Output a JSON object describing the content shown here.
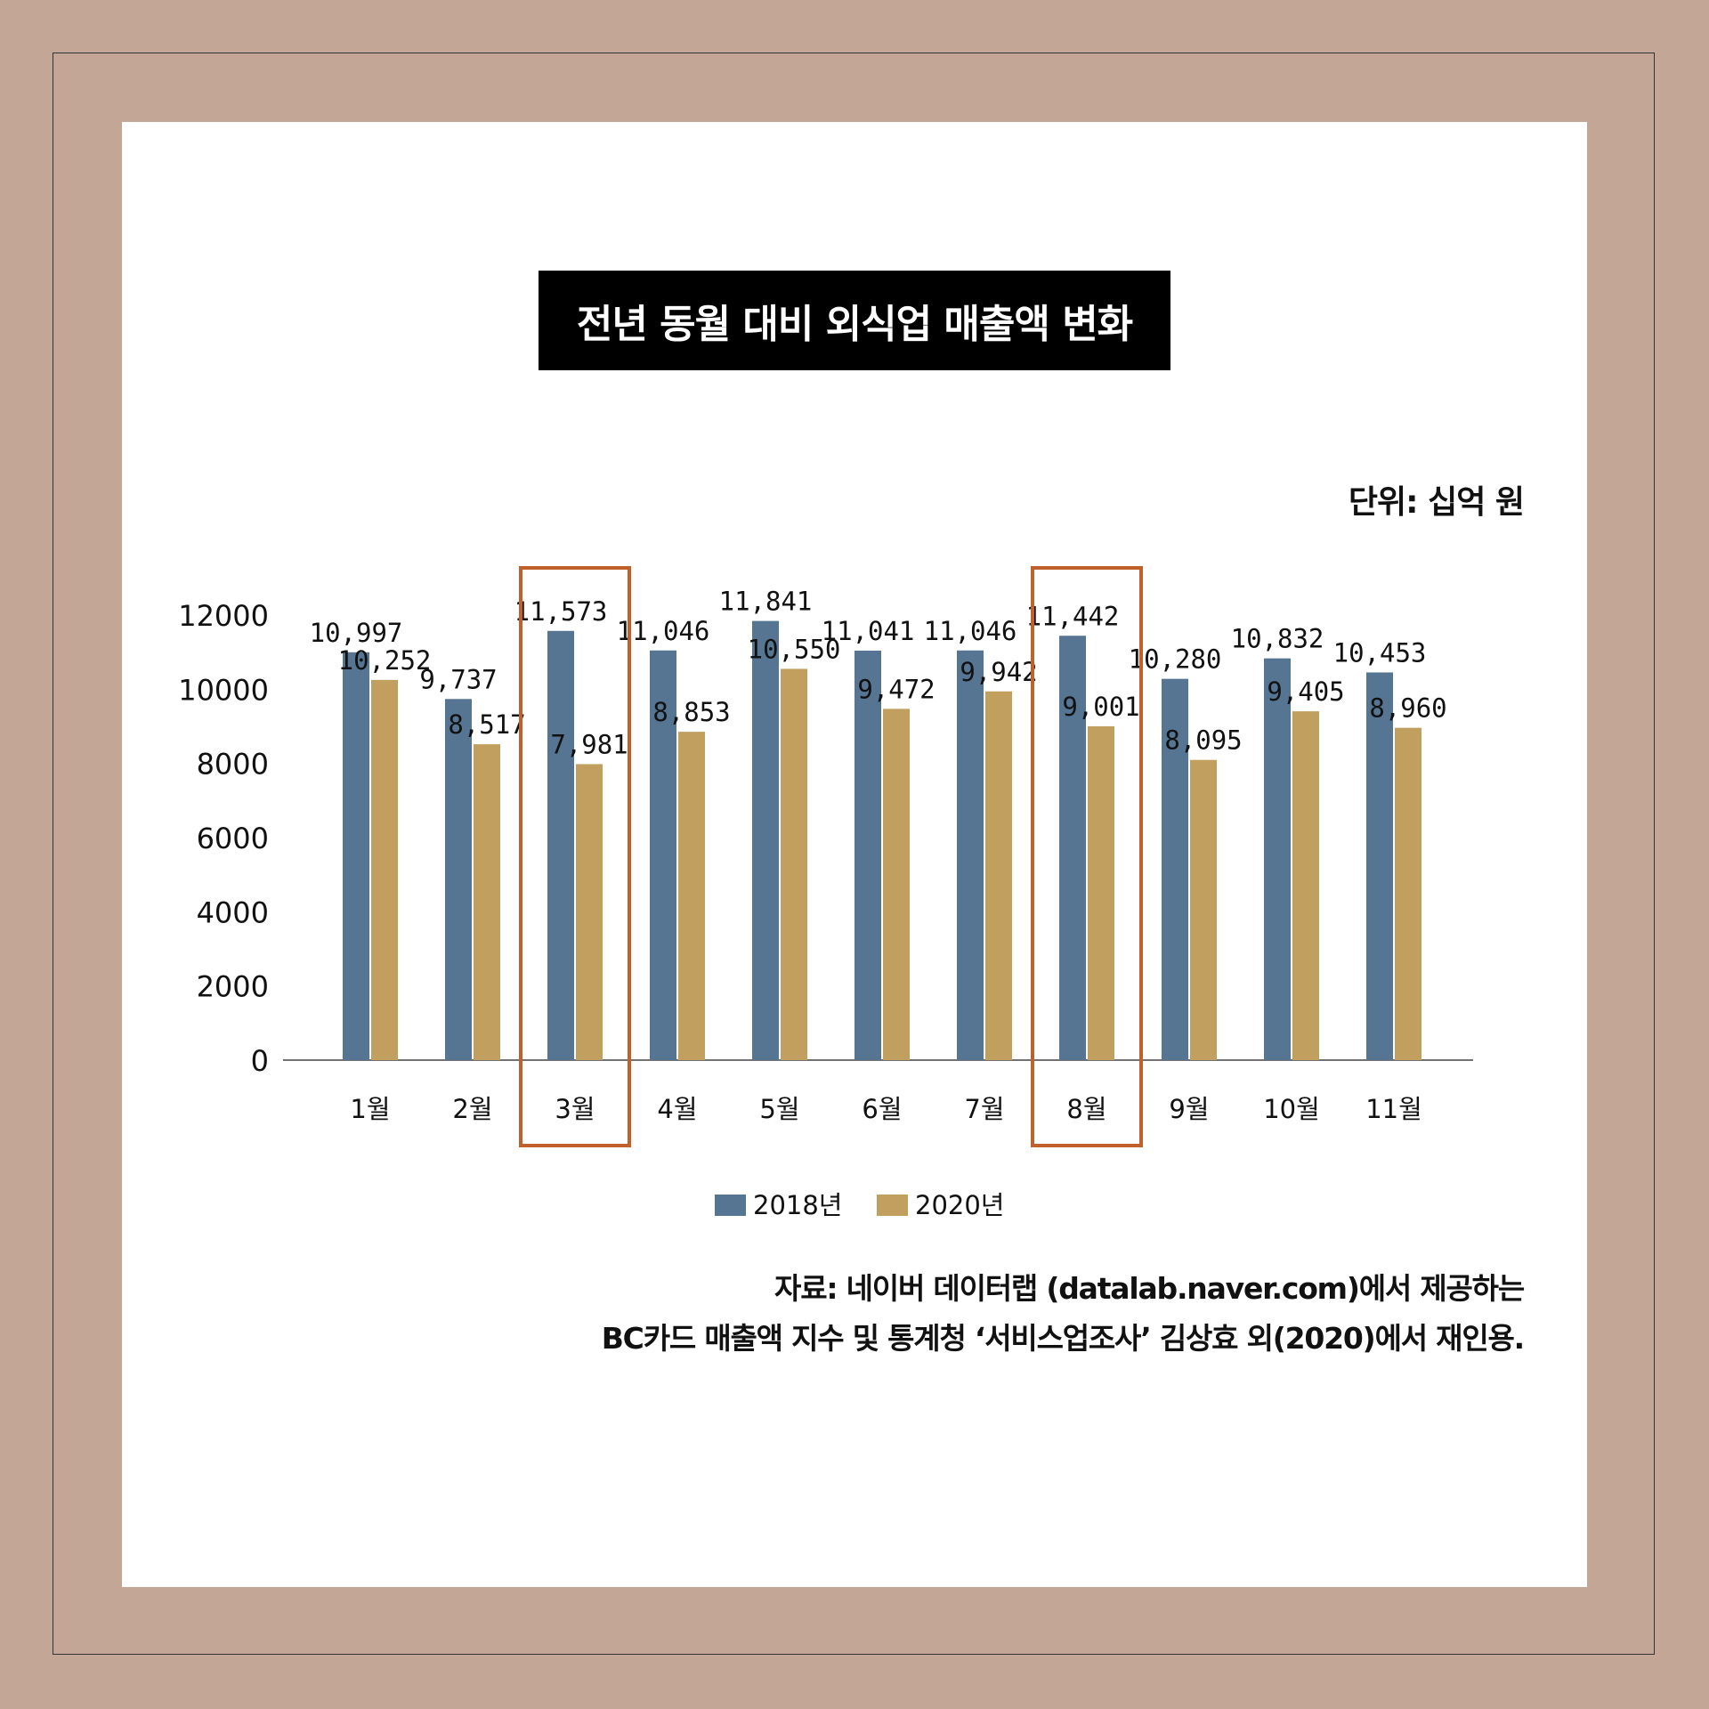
{
  "title": "전년 동월 대비 외식업 매출액 변화",
  "unit_label": "단위: 십억 원",
  "source_lines": [
    "자료: 네이버 데이터랩 (datalab.naver.com)에서 제공하는",
    "BC카드 매출액 지수 및 통계청 ‘서비스업조사’ 김상효 외(2020)에서 재인용."
  ],
  "colors": {
    "background": "#c4a696",
    "series_2018": "#557593",
    "series_2020": "#c19f5e",
    "highlight_box": "#c0612b"
  },
  "chart_data": {
    "type": "bar",
    "categories": [
      "1월",
      "2월",
      "3월",
      "4월",
      "5월",
      "6월",
      "7월",
      "8월",
      "9월",
      "10월",
      "11월"
    ],
    "series": [
      {
        "name": "2018년",
        "values": [
          10997,
          9737,
          11573,
          11046,
          11841,
          11041,
          11046,
          11442,
          10280,
          10832,
          10453
        ],
        "labels": [
          "10,997",
          "9,737",
          "11,573",
          "11,046",
          "11,841",
          "11,041",
          "11,046",
          "11,442",
          "10,280",
          "10,832",
          "10,453"
        ]
      },
      {
        "name": "2020년",
        "values": [
          10252,
          8517,
          7981,
          8853,
          10550,
          9472,
          9942,
          9001,
          8095,
          9405,
          8960
        ],
        "labels": [
          "10,252",
          "8,517",
          "7,981",
          "8,853",
          "10,550",
          "9,472",
          "9,942",
          "9,001",
          "8,095",
          "9,405",
          "8,960"
        ]
      }
    ],
    "y_ticks": [
      "0",
      "2000",
      "4000",
      "6000",
      "8000",
      "10000",
      "12000"
    ],
    "ylim": [
      0,
      12000
    ],
    "highlighted_categories": [
      "3월",
      "8월"
    ],
    "legend_position": "bottom",
    "grid": false
  }
}
